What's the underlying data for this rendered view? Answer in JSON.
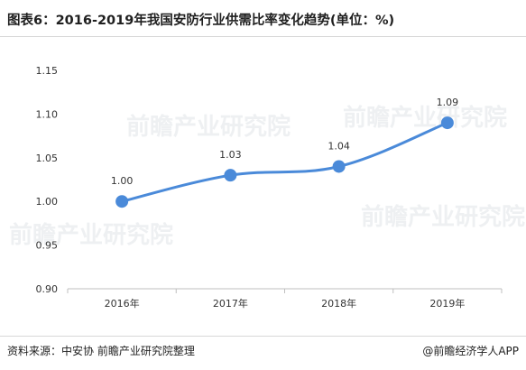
{
  "title": "图表6：2016-2019年我国安防行业供需比率变化趋势(单位：%)",
  "footer": {
    "source": "资料来源：中安协 前瞻产业研究院整理",
    "brand": "@前瞻经济学人APP"
  },
  "watermark": {
    "text": "前瞻产业研究院"
  },
  "colors": {
    "line": "#4a8ad9",
    "marker": "#4a8ad9",
    "axis": "#bfbfbf",
    "text": "#333333"
  },
  "chart_data": {
    "type": "line",
    "categories": [
      "2016年",
      "2017年",
      "2018年",
      "2019年"
    ],
    "series": [
      {
        "values": [
          1.0,
          1.03,
          1.04,
          1.09
        ]
      }
    ],
    "data_labels": [
      "1.00",
      "1.03",
      "1.04",
      "1.09"
    ],
    "yticks": [
      "0.90",
      "0.95",
      "1.00",
      "1.05",
      "1.10",
      "1.15"
    ],
    "ylim": [
      0.9,
      1.15
    ],
    "grid": false,
    "legend": "none"
  }
}
